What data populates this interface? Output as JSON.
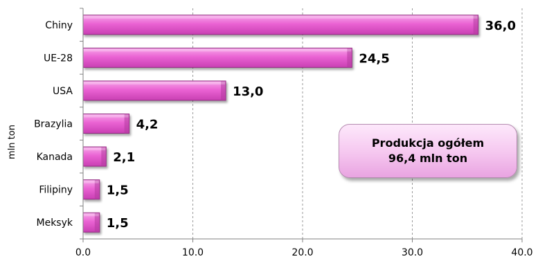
{
  "chart_data": {
    "type": "bar",
    "orientation": "horizontal",
    "categories": [
      "Chiny",
      "UE-28",
      "USA",
      "Brazylia",
      "Kanada",
      "Filipiny",
      "Meksyk"
    ],
    "values": [
      36.0,
      24.5,
      13.0,
      4.2,
      2.1,
      1.5,
      1.5
    ],
    "value_labels": [
      "36,0",
      "24,5",
      "13,0",
      "4,2",
      "2,1",
      "1,5",
      "1,5"
    ],
    "xlim": [
      0,
      40
    ],
    "xticks": [
      0,
      10,
      20,
      30,
      40
    ],
    "xtick_labels": [
      "0.0",
      "10.0",
      "20.0",
      "30.0",
      "40.0"
    ],
    "ylabel": "mln ton",
    "grid": "vertical",
    "bar_color": "#e65ccf",
    "annotation": {
      "line1": "Produkcja ogółem",
      "line2": "96,4 mln ton"
    }
  }
}
